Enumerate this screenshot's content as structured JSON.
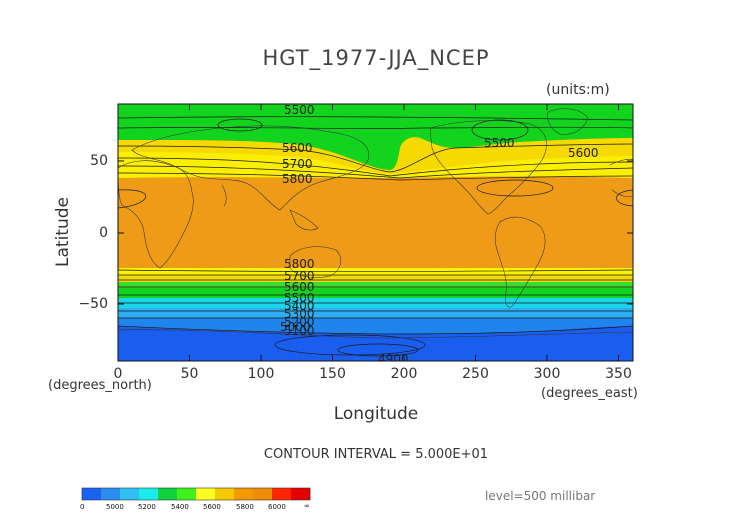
{
  "title": "HGT_1977-JJA_NCEP",
  "units": "(units:m)",
  "axes": {
    "ylabel": "Latitude",
    "xlabel": "Longitude",
    "yunits": "(degrees_north)",
    "xunits": "(degrees_east)",
    "yticks": [
      "50",
      "0",
      "−50"
    ],
    "xticks": [
      "0",
      "50",
      "100",
      "150",
      "200",
      "250",
      "300",
      "350"
    ],
    "xrange": [
      0,
      360
    ],
    "yrange": [
      -90,
      90
    ]
  },
  "contour_interval": "CONTOUR INTERVAL = 5.000E+01",
  "level": "level=500 millibar",
  "contour_labels": [
    "5500",
    "5600",
    "5700",
    "5800",
    "5800",
    "5700",
    "5600",
    "5500",
    "5400",
    "5300",
    "5200",
    "5100",
    "5000",
    "4900",
    "5500",
    "5600"
  ],
  "colorbar": {
    "labels": [
      "0",
      "5000",
      "5200",
      "5400",
      "5600",
      "5800",
      "6000",
      "∞"
    ],
    "colors": [
      "#1a63f2",
      "#2a8ef0",
      "#2fbff2",
      "#19ecec",
      "#10d23c",
      "#3ef01c",
      "#ffff22",
      "#f6c800",
      "#f29a00",
      "#ef8c08",
      "#ff2600",
      "#e60000"
    ]
  },
  "fill_colors": {
    "tropics": "#ee9b18",
    "bright_yellow": "#ffff00",
    "yellow": "#f5d900",
    "green": "#12d41f",
    "light_green": "#3cdc2a",
    "cyan": "#1ad6ea",
    "light_blue": "#2eaef2",
    "blue": "#1f85ee",
    "dark_blue": "#1a5ef0"
  }
}
